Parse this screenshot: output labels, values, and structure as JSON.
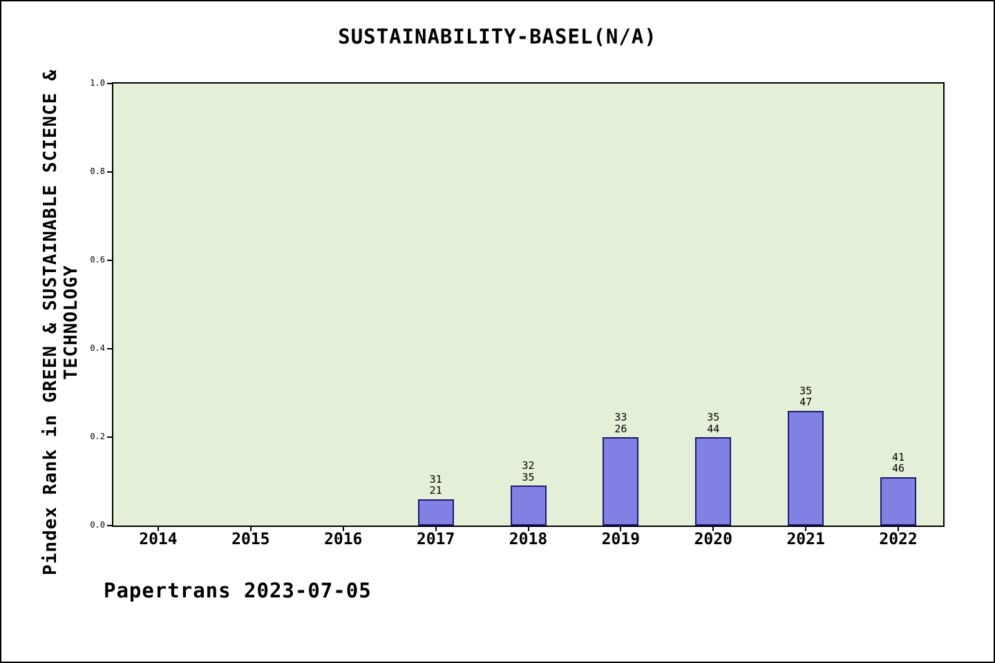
{
  "chart_data": {
    "type": "bar",
    "title": "SUSTAINABILITY-BASEL(N/A)",
    "ylabel": "Pindex Rank in GREEN & SUSTAINABLE SCIENCE & TECHNOLOGY",
    "xlabel": "",
    "categories": [
      "2014",
      "2015",
      "2016",
      "2017",
      "2018",
      "2019",
      "2020",
      "2021",
      "2022"
    ],
    "values": [
      null,
      null,
      null,
      0.06,
      0.09,
      0.2,
      0.2,
      0.26,
      0.11
    ],
    "bar_labels": [
      null,
      null,
      null,
      [
        "31",
        "21"
      ],
      [
        "32",
        "35"
      ],
      [
        "33",
        "26"
      ],
      [
        "35",
        "44"
      ],
      [
        "35",
        "47"
      ],
      [
        "41",
        "46"
      ]
    ],
    "ylim": [
      0,
      1
    ],
    "yticks": [
      "0.0",
      "0.2",
      "0.4",
      "0.6",
      "0.8",
      "1.0"
    ],
    "grid": false,
    "legend": null,
    "footer": "Papertrans 2023-07-05",
    "colors": {
      "bar_fill": "#8181e3",
      "bar_edge": "#1b1b70",
      "plot_bg": "#e3efd6",
      "page_bg": "#ffffff",
      "text": "#000000"
    }
  }
}
